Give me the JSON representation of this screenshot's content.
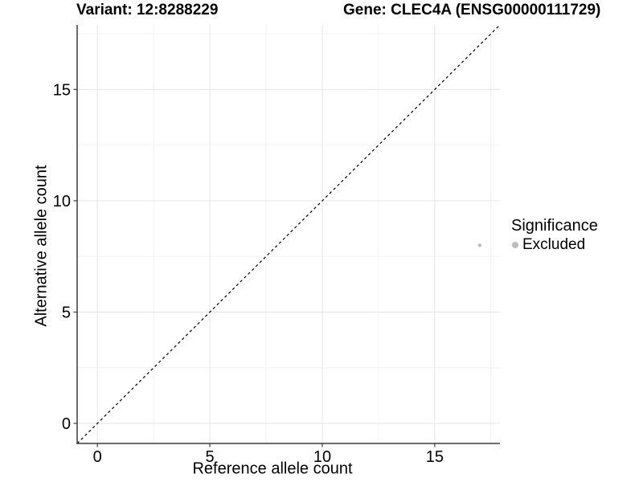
{
  "titles": {
    "variant": "Variant: 12:8288229",
    "gene": "Gene: CLEC4A (ENSG00000111729)"
  },
  "chart_data": {
    "type": "scatter",
    "title_left": "Variant: 12:8288229",
    "title_right": "Gene: CLEC4A (ENSG00000111729)",
    "xlabel": "Reference allele count",
    "ylabel": "Alternative allele count",
    "xlim": [
      -0.9,
      17.9
    ],
    "ylim": [
      -0.9,
      17.9
    ],
    "x_ticks": [
      0,
      5,
      10,
      15
    ],
    "y_ticks": [
      0,
      5,
      10,
      15
    ],
    "x_minor_ticks": [
      2.5,
      7.5,
      12.5,
      17.5
    ],
    "y_minor_ticks": [
      2.5,
      7.5,
      12.5,
      17.5
    ],
    "grid": "major+minor",
    "legend_position": "right",
    "series": [
      {
        "name": "Excluded",
        "marker": "circle",
        "color": "#bcbcbc",
        "points": [
          {
            "x": 17,
            "y": 8
          }
        ]
      }
    ],
    "reference_line": {
      "kind": "identity",
      "slope": 1,
      "intercept": 0,
      "linestyle": "dashed",
      "color": "#000000"
    },
    "legend": {
      "title": "Significance",
      "entries": [
        {
          "label": "Excluded",
          "color": "#bcbcbc",
          "marker": "circle"
        }
      ]
    }
  },
  "colors": {
    "background": "#ffffff",
    "axis_line": "#3c3c3c",
    "grid_major": "#e6e6e6",
    "grid_minor": "#f2f2f2",
    "text": "#000000"
  }
}
